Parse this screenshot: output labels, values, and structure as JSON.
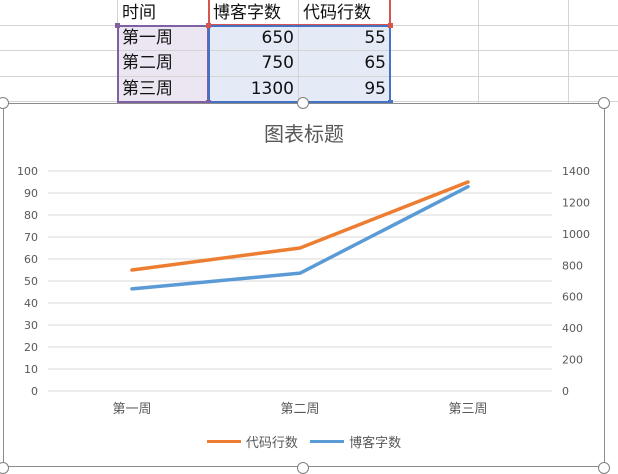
{
  "table": {
    "headers": [
      "时间",
      "博客字数",
      "代码行数"
    ],
    "rows": [
      {
        "label": "第一周",
        "blog": "650",
        "code": "55"
      },
      {
        "label": "第二周",
        "blog": "750",
        "code": "65"
      },
      {
        "label": "第三周",
        "blog": "1300",
        "code": "95"
      }
    ]
  },
  "colors": {
    "code_series": "#ed7d31",
    "blog_series": "#5b9bd5",
    "grid": "#d9d9d9",
    "axis_text": "#595959",
    "range_purple": "#7f60a3",
    "range_red": "#d9534f",
    "range_blue": "#4472c4"
  },
  "chart_data": {
    "type": "line",
    "title": "图表标题",
    "categories": [
      "第一周",
      "第二周",
      "第三周"
    ],
    "series": [
      {
        "name": "代码行数",
        "values": [
          55,
          65,
          95
        ],
        "axis": "left"
      },
      {
        "name": "博客字数",
        "values": [
          650,
          750,
          1300
        ],
        "axis": "right"
      }
    ],
    "left_axis": {
      "ylim": [
        0,
        100
      ],
      "ticks": [
        "0",
        "10",
        "20",
        "30",
        "40",
        "50",
        "60",
        "70",
        "80",
        "90",
        "100"
      ]
    },
    "right_axis": {
      "ylim": [
        0,
        1400
      ],
      "ticks": [
        "0",
        "200",
        "400",
        "600",
        "800",
        "1000",
        "1200",
        "1400"
      ]
    },
    "grid": true,
    "legend_position": "bottom"
  }
}
